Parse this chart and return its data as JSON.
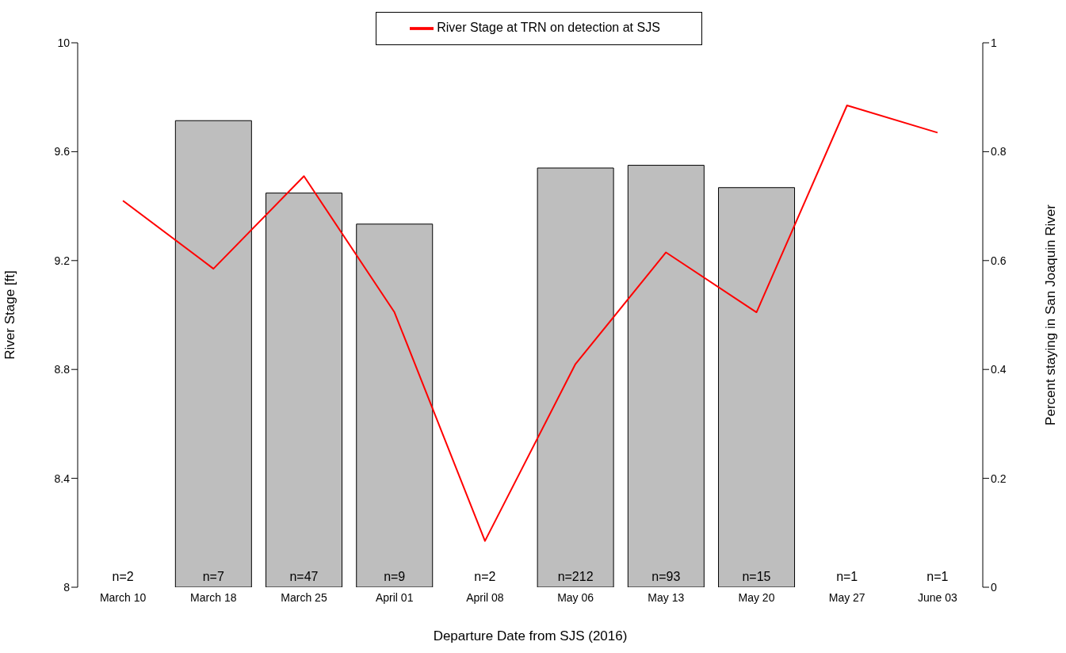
{
  "chart_data": {
    "type": "bar",
    "xlabel": "Departure Date from SJS (2016)",
    "ylabel": "River Stage [ft]",
    "y2label": "Percent staying in San Joaquin River",
    "categories": [
      "March 10",
      "March 18",
      "March 25",
      "April 01",
      "April 08",
      "May 06",
      "May 13",
      "May 20",
      "May 27",
      "June 03"
    ],
    "series": [
      {
        "axis": "y2",
        "color": "#bebebe",
        "values": [
          0,
          0.857,
          0.724,
          0.667,
          0,
          0.77,
          0.775,
          0.734,
          0,
          0
        ]
      },
      {
        "type": "line",
        "name": "River Stage at TRN on detection at SJS",
        "color": "#ff0000",
        "values": [
          9.42,
          9.17,
          9.51,
          9.01,
          8.17,
          8.82,
          9.23,
          9.01,
          9.77,
          9.67
        ]
      }
    ],
    "ylim": [
      8,
      10
    ],
    "yticks": [
      8,
      8.4,
      8.8,
      9.2,
      9.6,
      10
    ],
    "y2lim": [
      0,
      1
    ],
    "y2ticks": [
      0,
      0.2,
      0.4,
      0.6,
      0.8,
      1
    ],
    "grid": false,
    "legend": "top",
    "marker": "none",
    "line_style": "solid",
    "annotations": [
      "n=2",
      "n=7",
      "n=47",
      "n=9",
      "n=2",
      "n=212",
      "n=93",
      "n=15",
      "n=1",
      "n=1"
    ]
  }
}
